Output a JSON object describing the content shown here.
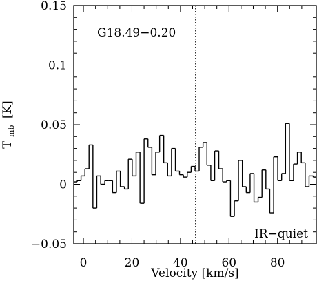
{
  "chart_data": {
    "type": "line",
    "subtype": "step",
    "title": "",
    "annotations": {
      "source_label": "G18.49−0.20",
      "class_label": "IR−quiet"
    },
    "xlabel": "Velocity [km/s]",
    "ylabel": {
      "main": "T",
      "sub": "mb",
      "unit": "[K]"
    },
    "xlim": [
      -4,
      96
    ],
    "ylim": [
      -0.05,
      0.15
    ],
    "xticks": [
      0,
      20,
      40,
      60,
      80
    ],
    "xtick_labels": [
      "0",
      "20",
      "40",
      "60",
      "80"
    ],
    "yticks": [
      -0.05,
      0,
      0.05,
      0.1,
      0.15
    ],
    "ytick_labels": [
      "−0.05",
      "0",
      "0.05",
      "0.1",
      "0.15"
    ],
    "grid": false,
    "reference_line": {
      "x": 46.2,
      "style": "dotted"
    },
    "series": [
      {
        "step_width": 1.62,
        "x": [
          -3.4,
          -1.8,
          -0.2,
          1.5,
          3.1,
          4.7,
          6.3,
          8.0,
          9.6,
          11.2,
          12.8,
          14.4,
          16.1,
          17.7,
          19.3,
          20.9,
          22.5,
          24.2,
          25.8,
          27.4,
          29.0,
          30.6,
          32.3,
          33.9,
          35.5,
          37.1,
          38.8,
          40.4,
          42.0,
          43.6,
          45.2,
          46.9,
          48.5,
          50.1,
          51.7,
          53.3,
          55.0,
          56.6,
          58.2,
          59.8,
          61.4,
          63.1,
          64.7,
          66.3,
          67.9,
          69.5,
          71.2,
          72.8,
          74.4,
          76.0,
          77.6,
          79.3,
          80.9,
          82.5,
          84.1,
          85.8,
          87.4,
          89.0,
          90.6,
          92.2,
          93.9,
          95.5
        ],
        "values": [
          0.002,
          0.003,
          0.007,
          0.013,
          0.033,
          -0.02,
          0.007,
          0.0,
          0.003,
          0.003,
          -0.007,
          0.011,
          -0.002,
          -0.004,
          0.021,
          0.007,
          0.027,
          -0.016,
          0.038,
          0.031,
          0.008,
          0.027,
          0.041,
          0.018,
          0.007,
          0.03,
          0.011,
          0.008,
          0.006,
          0.01,
          0.015,
          0.011,
          0.031,
          0.035,
          0.016,
          0.003,
          0.028,
          0.013,
          0.002,
          0.003,
          -0.027,
          -0.014,
          0.02,
          -0.002,
          -0.007,
          0.009,
          -0.015,
          -0.011,
          0.012,
          -0.004,
          -0.024,
          0.023,
          0.003,
          0.009,
          0.051,
          0.003,
          0.017,
          0.027,
          0.018,
          -0.002,
          0.007,
          0.006
        ]
      }
    ]
  }
}
